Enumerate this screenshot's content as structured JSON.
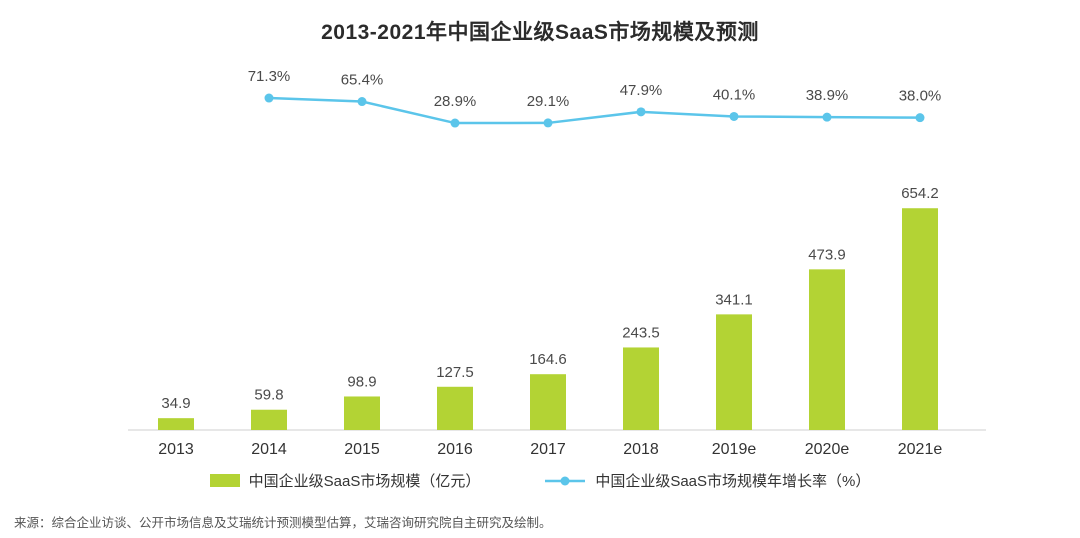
{
  "chart_data": {
    "type": "combo-bar-line",
    "title": "2013-2021年中国企业级SaaS市场规模及预测",
    "categories": [
      "2013",
      "2014",
      "2015",
      "2016",
      "2017",
      "2018",
      "2019e",
      "2020e",
      "2021e"
    ],
    "series": [
      {
        "name": "中国企业级SaaS市场规模（亿元）",
        "type": "bar",
        "unit": "亿元",
        "values": [
          34.9,
          59.8,
          98.9,
          127.5,
          164.6,
          243.5,
          341.1,
          473.9,
          654.2
        ]
      },
      {
        "name": "中国企业级SaaS市场规模年增长率（%）",
        "type": "line",
        "unit": "%",
        "values": [
          null,
          71.3,
          65.4,
          28.9,
          29.1,
          47.9,
          40.1,
          38.9,
          38.0
        ]
      }
    ],
    "colors": {
      "bar": "#b3d334",
      "line": "#5bc5ea"
    },
    "legend_position": "bottom",
    "grid": false,
    "value_labels": true
  },
  "source": "来源：综合企业访谈、公开市场信息及艾瑞统计预测模型估算，艾瑞咨询研究院自主研究及绘制。"
}
